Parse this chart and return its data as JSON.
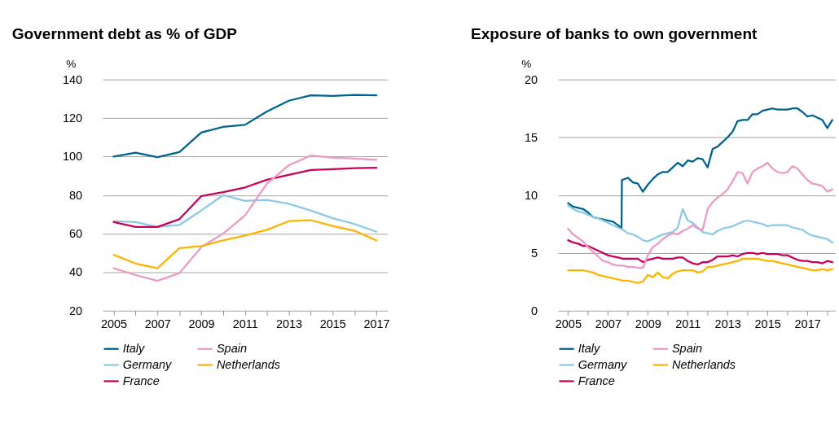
{
  "chart_data": [
    {
      "type": "line",
      "title": "Government debt as % of GDP",
      "ylabel": "%",
      "x": [
        2005,
        2006,
        2007,
        2008,
        2009,
        2010,
        2011,
        2012,
        2013,
        2014,
        2015,
        2016,
        2017
      ],
      "xlim": [
        2004.5,
        2017.5
      ],
      "xticks": [
        2005,
        {
          "value": 2006,
          "label": null
        },
        2007,
        {
          "value": 2008,
          "label": null
        },
        2009,
        {
          "value": 2010,
          "label": null
        },
        2011,
        {
          "value": 2012,
          "label": null
        },
        2013,
        {
          "value": 2014,
          "label": null
        },
        2015,
        {
          "value": 2016,
          "label": null
        },
        2017
      ],
      "ylim": [
        20,
        140
      ],
      "yticks": [
        20,
        40,
        60,
        80,
        100,
        120,
        140
      ],
      "grid": "y",
      "legend": "bottom",
      "line_style": "solid",
      "marker": "none",
      "series": [
        {
          "name": "Italy",
          "color": "#00628f",
          "values": [
            100,
            102,
            99.7,
            102.3,
            112.5,
            115.4,
            116.5,
            123.4,
            129,
            131.8,
            131.5,
            132,
            131.8
          ]
        },
        {
          "name": "Germany",
          "color": "#8cc8e8",
          "values": [
            66.5,
            66,
            63.5,
            64.5,
            72,
            80,
            77,
            77.5,
            75.5,
            72,
            68,
            65,
            61
          ]
        },
        {
          "name": "France",
          "color": "#c8005a",
          "values": [
            66,
            63.5,
            63.5,
            67.5,
            79.5,
            81.5,
            84,
            88,
            90.5,
            93,
            93.5,
            94,
            94.2
          ]
        },
        {
          "name": "Spain",
          "color": "#ec9ac4",
          "values": [
            42,
            38.5,
            35.5,
            39.5,
            53,
            60,
            69.5,
            86,
            95.5,
            100.5,
            99.5,
            99,
            98.3
          ]
        },
        {
          "name": "Netherlands",
          "color": "#ffb300",
          "values": [
            49,
            44.5,
            42,
            52.5,
            53.5,
            56.5,
            59,
            62,
            66.5,
            67,
            64,
            61.5,
            56.5
          ]
        }
      ]
    },
    {
      "type": "line",
      "title": "Exposure of banks to own government",
      "ylabel": "%",
      "x": [
        2005,
        2005.25,
        2005.5,
        2005.75,
        2006,
        2006.25,
        2006.5,
        2006.75,
        2007,
        2007.25,
        2007.5,
        2007.75,
        2008,
        2008.25,
        2008.5,
        2008.75,
        2009,
        2009.25,
        2009.5,
        2009.75,
        2010,
        2010.25,
        2010.5,
        2010.75,
        2011,
        2011.25,
        2011.5,
        2011.75,
        2012,
        2012.25,
        2012.5,
        2012.75,
        2013,
        2013.25,
        2013.5,
        2013.75,
        2014,
        2014.25,
        2014.5,
        2014.75,
        2015,
        2015.25,
        2015.5,
        2015.75,
        2016,
        2016.25,
        2016.5,
        2016.75,
        2017,
        2017.25,
        2017.5,
        2017.75,
        2018,
        2018.25
      ],
      "xlim": [
        2004.5,
        2018.4
      ],
      "xticks": [
        2005,
        {
          "value": 2006,
          "label": null
        },
        2007,
        {
          "value": 2008,
          "label": null
        },
        2009,
        {
          "value": 2010,
          "label": null
        },
        2011,
        {
          "value": 2012,
          "label": null
        },
        2013,
        {
          "value": 2014,
          "label": null
        },
        2015,
        {
          "value": 2016,
          "label": null
        },
        2017,
        {
          "value": 2018,
          "label": null
        }
      ],
      "ylim": [
        0,
        20
      ],
      "yticks": [
        0,
        5,
        10,
        15,
        20
      ],
      "grid": "y",
      "legend": "bottom",
      "line_style": "solid",
      "marker": "none",
      "series": [
        {
          "name": "Italy",
          "color": "#00628f",
          "x": [
            2005,
            2005.25,
            2005.5,
            2005.75,
            2006,
            2006.25,
            2006.5,
            2006.75,
            2007,
            2007.25,
            2007.5,
            2007.68,
            2007.7,
            2008,
            2008.25,
            2008.5,
            2008.75,
            2009,
            2009.25,
            2009.5,
            2009.75,
            2010,
            2010.25,
            2010.5,
            2010.75,
            2011,
            2011.25,
            2011.5,
            2011.75,
            2012,
            2012.25,
            2012.5,
            2012.75,
            2013,
            2013.25,
            2013.5,
            2013.75,
            2014,
            2014.25,
            2014.5,
            2014.75,
            2015,
            2015.25,
            2015.5,
            2015.75,
            2016,
            2016.25,
            2016.5,
            2016.75,
            2017,
            2017.25,
            2017.5,
            2017.75,
            2018,
            2018.25
          ],
          "values": [
            9.3,
            9.0,
            8.9,
            8.8,
            8.5,
            8.1,
            8.0,
            7.9,
            7.8,
            7.7,
            7.4,
            7.1,
            11.3,
            11.5,
            11.1,
            11.0,
            10.3,
            10.9,
            11.4,
            11.8,
            12.0,
            12.0,
            12.4,
            12.8,
            12.5,
            13.0,
            12.9,
            13.2,
            13.1,
            12.4,
            14.0,
            14.2,
            14.6,
            15.0,
            15.5,
            16.4,
            16.5,
            16.5,
            17.0,
            17.0,
            17.3,
            17.4,
            17.5,
            17.4,
            17.4,
            17.4,
            17.5,
            17.5,
            17.2,
            16.8,
            16.9,
            16.7,
            16.5,
            15.8,
            16.5
          ]
        },
        {
          "name": "Germany",
          "color": "#8cc8e8",
          "values": [
            9.1,
            8.8,
            8.6,
            8.5,
            8.3,
            8.1,
            8.0,
            7.8,
            7.6,
            7.4,
            7.2,
            7.0,
            6.7,
            6.6,
            6.4,
            6.1,
            6.0,
            6.2,
            6.4,
            6.6,
            6.7,
            6.8,
            7.2,
            8.8,
            7.8,
            7.6,
            7.2,
            6.8,
            6.7,
            6.6,
            6.9,
            7.1,
            7.2,
            7.3,
            7.5,
            7.7,
            7.8,
            7.7,
            7.6,
            7.5,
            7.3,
            7.4,
            7.4,
            7.4,
            7.4,
            7.2,
            7.1,
            7.0,
            6.7,
            6.5,
            6.4,
            6.3,
            6.2,
            5.9
          ]
        },
        {
          "name": "France",
          "color": "#c8005a",
          "values": [
            6.1,
            5.9,
            5.8,
            5.6,
            5.6,
            5.4,
            5.2,
            5.0,
            4.8,
            4.7,
            4.6,
            4.5,
            4.5,
            4.5,
            4.5,
            4.2,
            4.4,
            4.5,
            4.6,
            4.5,
            4.5,
            4.5,
            4.6,
            4.6,
            4.3,
            4.1,
            4.0,
            4.2,
            4.2,
            4.4,
            4.7,
            4.7,
            4.7,
            4.8,
            4.7,
            4.9,
            5.0,
            5.0,
            4.9,
            5.0,
            4.9,
            4.9,
            4.9,
            4.8,
            4.8,
            4.6,
            4.4,
            4.3,
            4.3,
            4.2,
            4.2,
            4.1,
            4.3,
            4.2
          ]
        },
        {
          "name": "Spain",
          "color": "#ec9ac4",
          "values": [
            7.1,
            6.6,
            6.3,
            6.0,
            5.5,
            5.1,
            4.7,
            4.3,
            4.2,
            4.0,
            3.9,
            3.9,
            3.8,
            3.8,
            3.7,
            3.7,
            4.8,
            5.5,
            5.8,
            6.2,
            6.5,
            6.7,
            6.6,
            6.9,
            7.1,
            7.4,
            7.1,
            7.0,
            8.8,
            9.4,
            9.8,
            10.1,
            10.5,
            11.2,
            12.0,
            11.9,
            11.0,
            12.0,
            12.3,
            12.5,
            12.8,
            12.3,
            12.0,
            11.9,
            12.0,
            12.5,
            12.3,
            11.8,
            11.3,
            11.0,
            10.9,
            10.8,
            10.3,
            10.5
          ]
        },
        {
          "name": "Netherlands",
          "color": "#ffb300",
          "values": [
            3.5,
            3.5,
            3.5,
            3.5,
            3.4,
            3.3,
            3.1,
            3.0,
            2.9,
            2.8,
            2.7,
            2.6,
            2.6,
            2.5,
            2.4,
            2.5,
            3.1,
            2.9,
            3.3,
            2.9,
            2.8,
            3.2,
            3.4,
            3.5,
            3.5,
            3.5,
            3.3,
            3.4,
            3.8,
            3.8,
            3.9,
            4.0,
            4.1,
            4.2,
            4.3,
            4.5,
            4.5,
            4.5,
            4.5,
            4.4,
            4.3,
            4.3,
            4.2,
            4.1,
            4.0,
            3.9,
            3.8,
            3.7,
            3.6,
            3.5,
            3.5,
            3.6,
            3.5,
            3.6
          ]
        }
      ]
    }
  ]
}
